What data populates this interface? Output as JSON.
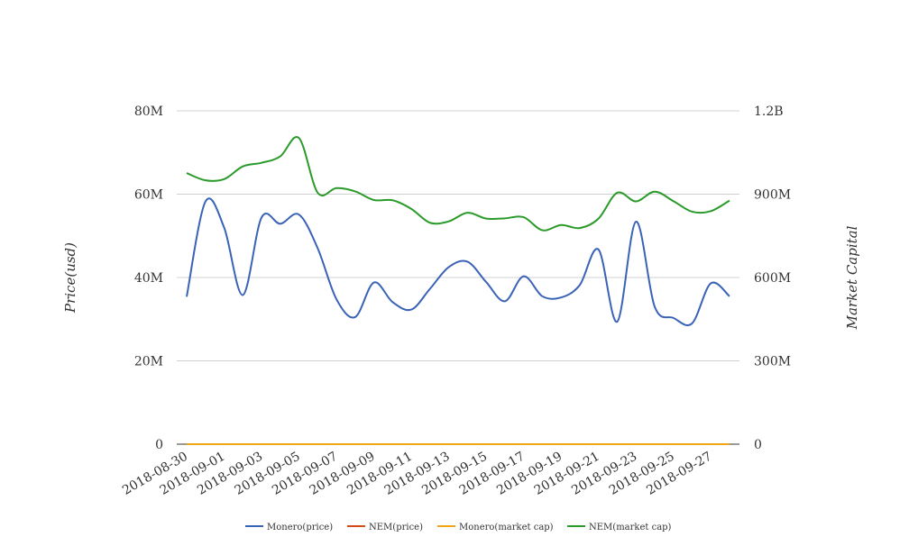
{
  "chart_data": {
    "type": "line",
    "ylabel_left": "Price(usd)",
    "ylabel_right": "Market Capital",
    "left_axis": {
      "ylim": [
        0,
        80000000
      ],
      "ticks": [
        "0",
        "20M",
        "40M",
        "60M",
        "80M"
      ]
    },
    "right_axis": {
      "ylim": [
        0,
        1200000000
      ],
      "ticks": [
        "0",
        "300M",
        "600M",
        "900M",
        "1.2B"
      ]
    },
    "x_tick_labels": [
      "2018-08-30",
      "2018-09-01",
      "2018-09-03",
      "2018-09-05",
      "2018-09-07",
      "2018-09-09",
      "2018-09-11",
      "2018-09-13",
      "2018-09-15",
      "2018-09-17",
      "2018-09-19",
      "2018-09-21",
      "2018-09-23",
      "2018-09-25",
      "2018-09-27"
    ],
    "x": [
      "2018-08-30",
      "2018-08-31",
      "2018-09-01",
      "2018-09-02",
      "2018-09-03",
      "2018-09-04",
      "2018-09-05",
      "2018-09-06",
      "2018-09-07",
      "2018-09-08",
      "2018-09-09",
      "2018-09-10",
      "2018-09-11",
      "2018-09-12",
      "2018-09-13",
      "2018-09-14",
      "2018-09-15",
      "2018-09-16",
      "2018-09-17",
      "2018-09-18",
      "2018-09-19",
      "2018-09-20",
      "2018-09-21",
      "2018-09-22",
      "2018-09-23",
      "2018-09-24",
      "2018-09-25",
      "2018-09-26",
      "2018-09-27",
      "2018-09-28"
    ],
    "grid": true,
    "legend_position": "bottom",
    "series": [
      {
        "name": "Monero(price)",
        "axis": "left",
        "color": "#3a62b6",
        "values": [
          35400000,
          58200000,
          52000000,
          35800000,
          54400000,
          52900000,
          55100000,
          47000000,
          34800000,
          30500000,
          38800000,
          34100000,
          32300000,
          37300000,
          42500000,
          43800000,
          38900000,
          34300000,
          40300000,
          35500000,
          35200000,
          38200000,
          46700000,
          29400000,
          53400000,
          33000000,
          30300000,
          29000000,
          38600000,
          35500000
        ]
      },
      {
        "name": "NEM(price)",
        "axis": "left",
        "color": "#d24a1a",
        "values": [
          0,
          0,
          0,
          0,
          0,
          0,
          0,
          0,
          0,
          0,
          0,
          0,
          0,
          0,
          0,
          0,
          0,
          0,
          0,
          0,
          0,
          0,
          0,
          0,
          0,
          0,
          0,
          0,
          0,
          0
        ]
      },
      {
        "name": "Monero(market cap)",
        "axis": "right",
        "color": "#f0a515",
        "values": [
          0,
          0,
          0,
          0,
          0,
          0,
          0,
          0,
          0,
          0,
          0,
          0,
          0,
          0,
          0,
          0,
          0,
          0,
          0,
          0,
          0,
          0,
          0,
          0,
          0,
          0,
          0,
          0,
          0,
          0
        ]
      },
      {
        "name": "NEM(market cap)",
        "axis": "right",
        "color": "#2a9a2a",
        "values": [
          976000000,
          950000000,
          954000000,
          1000000000,
          1013000000,
          1036000000,
          1102000000,
          905000000,
          922000000,
          910000000,
          879000000,
          878000000,
          847000000,
          797000000,
          802000000,
          833000000,
          812000000,
          813000000,
          817000000,
          770000000,
          789000000,
          778000000,
          812000000,
          905000000,
          874000000,
          909000000,
          875000000,
          837000000,
          839000000,
          877000000
        ]
      }
    ]
  }
}
